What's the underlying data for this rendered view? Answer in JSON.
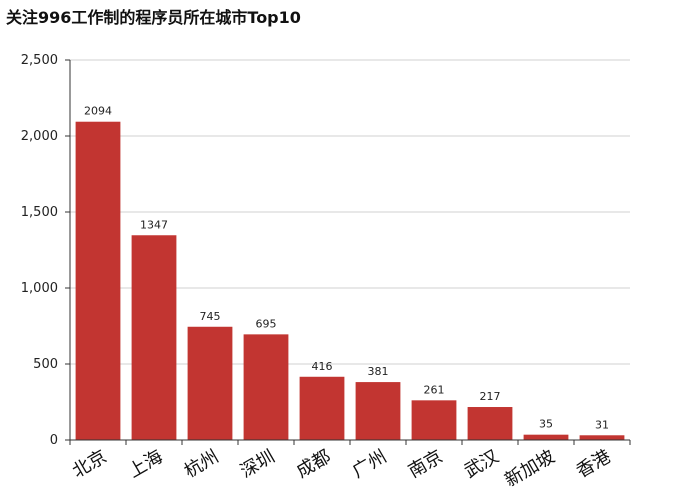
{
  "chart_data": {
    "type": "bar",
    "title": "关注996工作制的程序员所在城市Top10",
    "xlabel": "",
    "ylabel": "",
    "categories": [
      "北京",
      "上海",
      "杭州",
      "深圳",
      "成都",
      "广州",
      "南京",
      "武汉",
      "新加坡",
      "香港"
    ],
    "values": [
      2094,
      1347,
      745,
      695,
      416,
      381,
      261,
      217,
      35,
      31
    ],
    "ylim": [
      0,
      2500
    ],
    "yticks": [
      0,
      500,
      1000,
      1500,
      2000,
      2500
    ],
    "ytick_labels": [
      "0",
      "500",
      "1,000",
      "1,500",
      "2,000",
      "2,500"
    ],
    "grid": true,
    "legend": "none",
    "bar_color": "#c23531"
  }
}
